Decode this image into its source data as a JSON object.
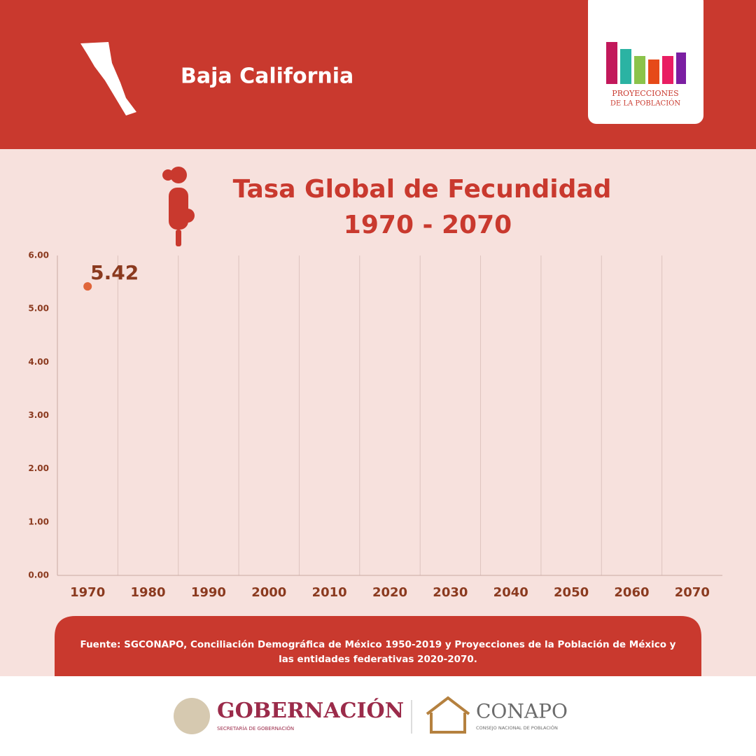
{
  "header": {
    "region": "Baja California",
    "logo_line1": "PROYECCIONES",
    "logo_line2": "DE LA POBLACIÓN"
  },
  "chart_data": {
    "type": "line",
    "title": "Tasa Global de Fecundidad",
    "subtitle": "1970 - 2070",
    "categories": [
      "1970",
      "1980",
      "1990",
      "2000",
      "2010",
      "2020",
      "2030",
      "2040",
      "2050",
      "2060",
      "2070"
    ],
    "values": [
      5.42,
      null,
      null,
      null,
      null,
      null,
      null,
      null,
      null,
      null,
      null
    ],
    "value_labels": [
      "5.42",
      null,
      null,
      null,
      null,
      null,
      null,
      null,
      null,
      null,
      null
    ],
    "color": "#e0653a",
    "ylim": [
      0,
      6
    ],
    "yticks": [
      {
        "value": 0,
        "label": "0.00"
      },
      {
        "value": 1,
        "label": "1.00"
      },
      {
        "value": 2,
        "label": "2.00"
      },
      {
        "value": 3,
        "label": "3.00"
      },
      {
        "value": 4,
        "label": "4.00"
      },
      {
        "value": 5,
        "label": "5.00"
      },
      {
        "value": 6,
        "label": "6.00"
      }
    ],
    "grid": true
  },
  "source": {
    "line1": "Fuente: SGCONAPO, Conciliación Demográfica de México 1950-2019 y Proyecciones de la Población de México y",
    "line2": "las entidades federativas 2020-2070."
  },
  "footer": {
    "gob": "GOBERNACIÓN",
    "gob_sub": "SECRETARÍA DE GOBERNACIÓN",
    "conapo": "CONAPO",
    "conapo_sub": "CONSEJO NACIONAL DE POBLACIÓN"
  }
}
